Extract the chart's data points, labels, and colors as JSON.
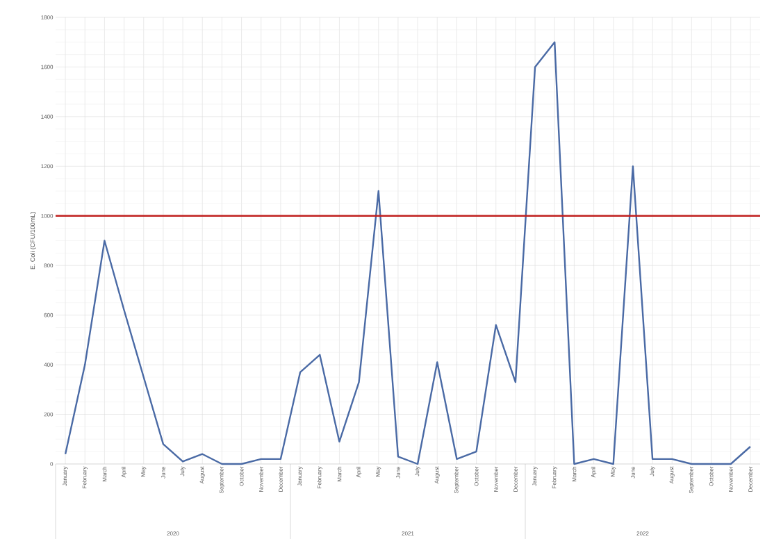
{
  "chart_data": {
    "type": "line",
    "ylabel": "E. Coli (CFU/100mL)",
    "categories": [
      "January",
      "February",
      "March",
      "April",
      "May",
      "June",
      "July",
      "August",
      "September",
      "October",
      "November",
      "December",
      "January",
      "February",
      "March",
      "April",
      "May",
      "June",
      "July",
      "August",
      "September",
      "October",
      "November",
      "December",
      "January",
      "February",
      "March",
      "April",
      "May",
      "June",
      "July",
      "August",
      "September",
      "October",
      "November",
      "December"
    ],
    "series": [
      {
        "color": "#4a6aa5",
        "values": [
          40,
          400,
          900,
          620,
          350,
          80,
          10,
          40,
          0,
          0,
          20,
          20,
          370,
          440,
          90,
          330,
          1100,
          30,
          0,
          410,
          20,
          50,
          560,
          330,
          1600,
          1700,
          0,
          20,
          0,
          1200,
          20,
          20,
          0,
          0,
          0,
          70
        ]
      }
    ],
    "ylim": [
      0,
      1800
    ],
    "yticks": [
      0,
      200,
      400,
      600,
      800,
      1000,
      1200,
      1400,
      1600,
      1800
    ],
    "ref_lines": [
      {
        "axis": "y",
        "value": 1000,
        "color": "#c0201f"
      }
    ],
    "annotations": [
      "2020",
      "2021",
      "2022"
    ],
    "grid": true,
    "marker": "none",
    "line_style": "solid"
  }
}
